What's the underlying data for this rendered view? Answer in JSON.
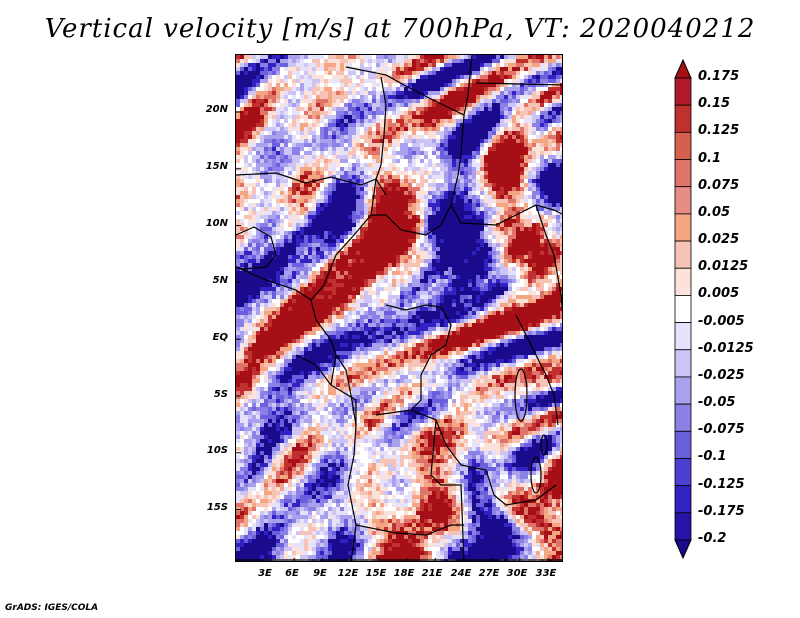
{
  "title": "Vertical velocity [m/s] at 700hPa, VT: 2020040212",
  "footer": "GrADS: IGES/COLA",
  "lat_labels": [
    "20N",
    "15N",
    "10N",
    "5N",
    "EQ",
    "5S",
    "10S",
    "15S"
  ],
  "lon_labels": [
    "3E",
    "6E",
    "9E",
    "12E",
    "15E",
    "18E",
    "21E",
    "24E",
    "27E",
    "30E",
    "33E"
  ],
  "colorbar": {
    "levels": [
      "0.175",
      "0.15",
      "0.125",
      "0.1",
      "0.075",
      "0.05",
      "0.025",
      "0.0125",
      "0.005",
      "-0.005",
      "-0.0125",
      "-0.025",
      "-0.05",
      "-0.075",
      "-0.1",
      "-0.125",
      "-0.175",
      "-0.2"
    ],
    "colors": [
      "#a50f15",
      "#b2182b",
      "#c0302e",
      "#d6604d",
      "#e0746a",
      "#e88d84",
      "#f4a582",
      "#f7c3b6",
      "#fbe3dc",
      "#ffffff",
      "#e6e2fb",
      "#cbc4f5",
      "#a9a0ee",
      "#8a80e6",
      "#6a5fdd",
      "#4c3fd2",
      "#3322c2",
      "#2614a8",
      "#1a0a8c"
    ]
  },
  "colors": {
    "positive_dark": "#b2182b",
    "positive_light": "#f4a582",
    "negative_light": "#cbc4f5",
    "negative_dark": "#3322c2"
  }
}
